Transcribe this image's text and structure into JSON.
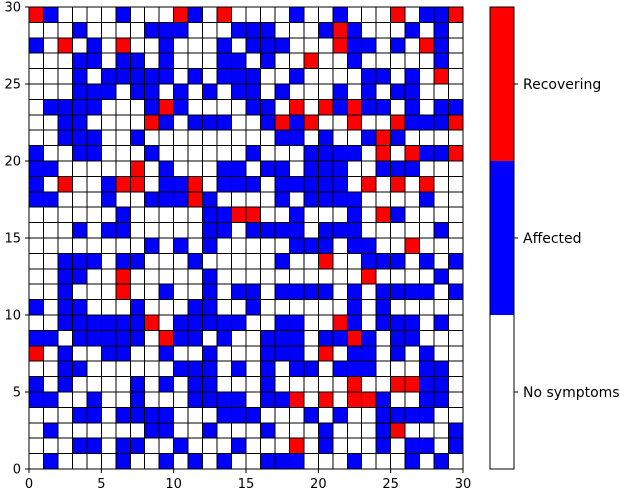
{
  "chart_data": {
    "type": "heatmap",
    "title": "",
    "xlabel": "",
    "ylabel": "",
    "xlim": [
      0,
      30
    ],
    "ylim": [
      0,
      30
    ],
    "x_ticks": [
      "0",
      "5",
      "10",
      "15",
      "20",
      "25",
      "30"
    ],
    "y_ticks": [
      "0",
      "5",
      "10",
      "15",
      "20",
      "25",
      "30"
    ],
    "states": [
      {
        "code": 0,
        "name": "No symptoms",
        "color": "#ffffff"
      },
      {
        "code": 1,
        "name": "Affected",
        "color": "#0000ff"
      },
      {
        "code": 2,
        "name": "Recovering",
        "color": "#ff0000"
      }
    ],
    "colorbar_labels": [
      "No symptoms",
      "Affected",
      "Recovering"
    ],
    "grid_rows_top_to_bottom": [
      "210000100021020000100100020112",
      "000100001110001110001210001010",
      "102010200100010111000211010210",
      "000110110100011010020010000010",
      "000101111101011100100001101020",
      "000111011010101101000101011000",
      "011110001210000110202121101011",
      "001100002101110012120020021112",
      "001110010000000001101001210000",
      "100110001000000100011110202112",
      "110000020100011011011100111000",
      "102001220112011101111102020200",
      "110001001112100001011110000100",
      "000000100000112200100010210000",
      "000101100000110111101110000010",
      "000000001010100000111011002000",
      "001110110001000001002001110101",
      "001100200000100000000002000010",
      "001000200100101101111010111101",
      "101100010001100100000010100000",
      "001111112011111001100210111010",
      "110111110211010011101121011000",
      "201001100100100011102011010100",
      "001100000011101010110111000110",
      "101000010101100010000020022110",
      "110010010001111011202022100110",
      "000110111100011100010100111100",
      "010000001100100010001000120001",
      "000110110010001000201000101101",
      "010000100101010011100010001010"
    ]
  }
}
